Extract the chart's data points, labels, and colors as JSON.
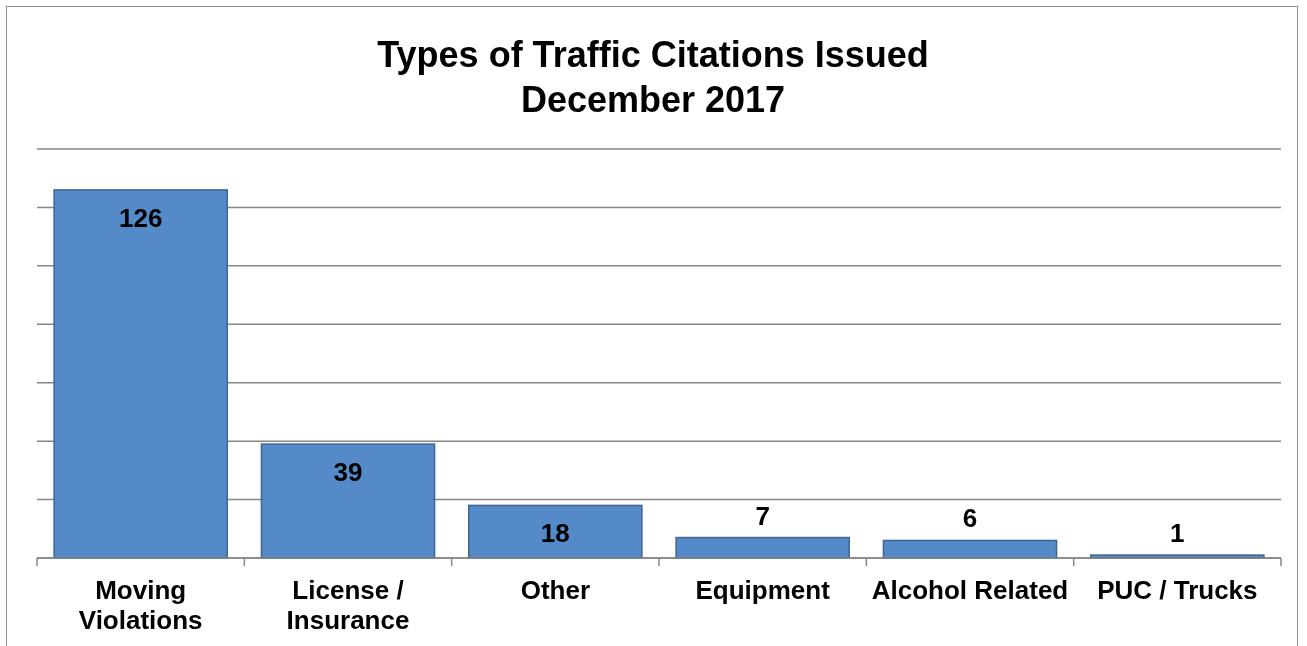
{
  "chart_data": {
    "type": "bar",
    "title": "Types of Traffic Citations Issued",
    "subtitle": "December 2017",
    "categories": [
      "Moving Violations",
      "License / Insurance",
      "Other",
      "Equipment",
      "Alcohol Related",
      "PUC / Trucks"
    ],
    "values": [
      126,
      39,
      18,
      7,
      6,
      1
    ],
    "color": "#558ac8",
    "ylim": [
      0,
      140
    ],
    "yticks": [
      {
        "value": 0,
        "label": null
      },
      {
        "value": 20,
        "label": null
      },
      {
        "value": 40,
        "label": null
      },
      {
        "value": 60,
        "label": null
      },
      {
        "value": 80,
        "label": null
      },
      {
        "value": 100,
        "label": null
      },
      {
        "value": 120,
        "label": null
      },
      {
        "value": 140,
        "label": null
      }
    ],
    "grid": "y",
    "tick_labels": "x",
    "data_labels": true
  }
}
